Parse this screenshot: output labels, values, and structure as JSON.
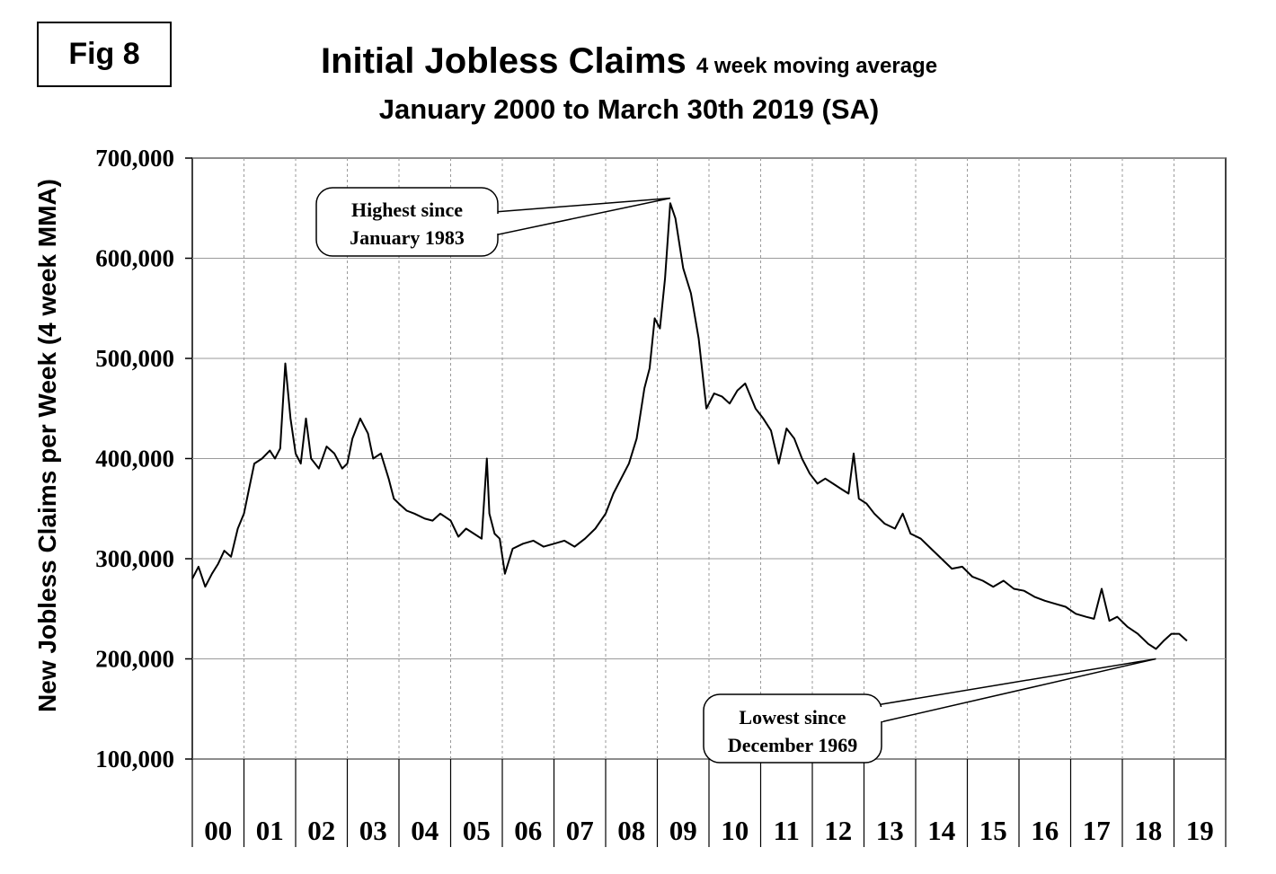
{
  "figure": {
    "label": "Fig 8"
  },
  "chart_data": {
    "type": "line",
    "title": "Initial Jobless Claims",
    "title_suffix": "4 week moving average",
    "subtitle": "January 2000 to March 30th 2019 (SA)",
    "ylabel": "New Jobless Claims per Week (4 week MMA)",
    "xlabel": "",
    "ylim": [
      100000,
      700000
    ],
    "xlim": [
      2000.0,
      2020.0
    ],
    "y_ticks": [
      {
        "value": 100000,
        "label": "100,000"
      },
      {
        "value": 200000,
        "label": "200,000"
      },
      {
        "value": 300000,
        "label": "300,000"
      },
      {
        "value": 400000,
        "label": "400,000"
      },
      {
        "value": 500000,
        "label": "500,000"
      },
      {
        "value": 600000,
        "label": "600,000"
      },
      {
        "value": 700000,
        "label": "700,000"
      }
    ],
    "x_tick_labels": [
      "00",
      "01",
      "02",
      "03",
      "04",
      "05",
      "06",
      "07",
      "08",
      "09",
      "10",
      "11",
      "12",
      "13",
      "14",
      "15",
      "16",
      "17",
      "18",
      "19"
    ],
    "grid": true,
    "line_color": "#000000",
    "series": [
      {
        "x": [
          2000.0,
          2000.12,
          2000.25,
          2000.38,
          2000.5,
          2000.62,
          2000.75,
          2000.88,
          2001.0,
          2001.1,
          2001.2,
          2001.35,
          2001.5,
          2001.6,
          2001.7,
          2001.8,
          2001.9,
          2002.0,
          2002.1,
          2002.2,
          2002.3,
          2002.45,
          2002.6,
          2002.75,
          2002.9,
          2003.0,
          2003.1,
          2003.25,
          2003.4,
          2003.5,
          2003.65,
          2003.8,
          2003.9,
          2004.0,
          2004.15,
          2004.3,
          2004.5,
          2004.65,
          2004.8,
          2005.0,
          2005.15,
          2005.3,
          2005.45,
          2005.6,
          2005.7,
          2005.75,
          2005.85,
          2005.95,
          2006.05,
          2006.2,
          2006.4,
          2006.6,
          2006.8,
          2007.0,
          2007.2,
          2007.4,
          2007.6,
          2007.8,
          2008.0,
          2008.15,
          2008.3,
          2008.45,
          2008.6,
          2008.75,
          2008.85,
          2008.95,
          2009.05,
          2009.15,
          2009.25,
          2009.35,
          2009.5,
          2009.65,
          2009.8,
          2009.95,
          2010.1,
          2010.25,
          2010.4,
          2010.55,
          2010.7,
          2010.9,
          2011.05,
          2011.2,
          2011.35,
          2011.5,
          2011.65,
          2011.8,
          2011.95,
          2012.1,
          2012.25,
          2012.4,
          2012.55,
          2012.7,
          2012.8,
          2012.9,
          2013.05,
          2013.2,
          2013.4,
          2013.6,
          2013.75,
          2013.9,
          2014.1,
          2014.3,
          2014.5,
          2014.7,
          2014.9,
          2015.1,
          2015.3,
          2015.5,
          2015.7,
          2015.9,
          2016.1,
          2016.3,
          2016.5,
          2016.7,
          2016.9,
          2017.1,
          2017.3,
          2017.45,
          2017.6,
          2017.75,
          2017.9,
          2018.1,
          2018.3,
          2018.5,
          2018.65,
          2018.8,
          2018.95,
          2019.1,
          2019.25
        ],
        "y": [
          280000,
          292000,
          272000,
          285000,
          295000,
          308000,
          302000,
          330000,
          345000,
          370000,
          395000,
          400000,
          408000,
          400000,
          410000,
          495000,
          440000,
          405000,
          395000,
          440000,
          400000,
          390000,
          412000,
          405000,
          390000,
          395000,
          420000,
          440000,
          425000,
          400000,
          405000,
          380000,
          360000,
          355000,
          348000,
          345000,
          340000,
          338000,
          345000,
          338000,
          322000,
          330000,
          325000,
          320000,
          400000,
          345000,
          325000,
          320000,
          285000,
          310000,
          315000,
          318000,
          312000,
          315000,
          318000,
          312000,
          320000,
          330000,
          345000,
          365000,
          380000,
          395000,
          420000,
          470000,
          490000,
          540000,
          530000,
          580000,
          655000,
          640000,
          590000,
          565000,
          520000,
          450000,
          465000,
          462000,
          455000,
          468000,
          475000,
          450000,
          440000,
          428000,
          395000,
          430000,
          420000,
          400000,
          385000,
          375000,
          380000,
          375000,
          370000,
          365000,
          405000,
          360000,
          355000,
          345000,
          335000,
          330000,
          345000,
          325000,
          320000,
          310000,
          300000,
          290000,
          292000,
          282000,
          278000,
          272000,
          278000,
          270000,
          268000,
          262000,
          258000,
          255000,
          252000,
          245000,
          242000,
          240000,
          270000,
          238000,
          242000,
          232000,
          225000,
          215000,
          210000,
          218000,
          225000,
          225000,
          218000
        ]
      }
    ],
    "annotations": [
      {
        "lines": [
          "Highest since",
          "January 1983"
        ],
        "point_x": 2009.25,
        "point_y": 660000
      },
      {
        "lines": [
          "Lowest since",
          "December 1969"
        ],
        "point_x": 2018.65,
        "point_y": 200000
      }
    ]
  }
}
